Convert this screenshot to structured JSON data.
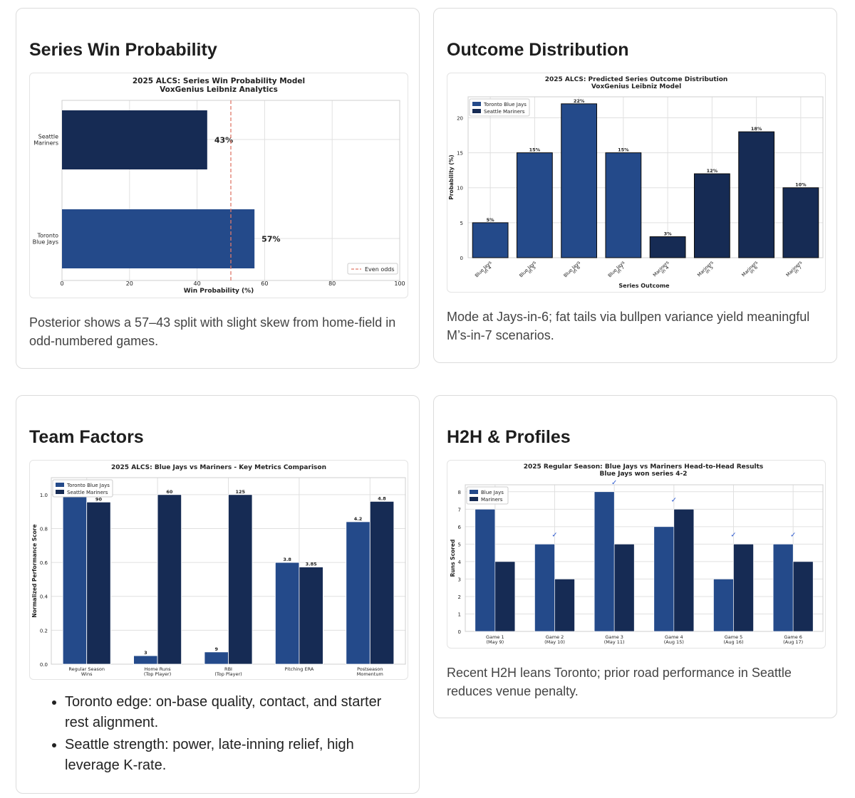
{
  "colors": {
    "blue_jays": "#244a8a",
    "mariners": "#162b54",
    "even_line": "#e07a6a",
    "grid": "#e0e0e0",
    "check": "#2f5bd0"
  },
  "cards": {
    "series": {
      "heading": "Series Win Probability",
      "caption": "Posterior shows a 57–43 split with slight skew from home-field in odd-numbered games."
    },
    "outcome": {
      "heading": "Outcome Distribution",
      "caption": "Mode at Jays-in-6; fat tails via bullpen variance yield meaningful M’s-in-7 scenarios."
    },
    "factors": {
      "heading": "Team Factors",
      "bullets": [
        "Toronto edge: on-base quality, contact, and starter rest alignment.",
        "Seattle strength: power, late-inning relief, high leverage K-rate."
      ]
    },
    "h2h": {
      "heading": "H2H & Profiles",
      "caption": "Recent H2H leans Toronto; prior road performance in Seattle reduces venue penalty."
    }
  },
  "chart_data": [
    {
      "id": "series_win",
      "type": "bar",
      "orientation": "horizontal",
      "title": "2025 ALCS: Series Win Probability Model",
      "subtitle": "VoxGenius Leibniz Analytics",
      "xlabel": "Win Probability (%)",
      "ylabel": "",
      "categories": [
        {
          "lines": [
            "Seattle",
            "Mariners"
          ],
          "value": 43,
          "label": "43%",
          "team": "mariners"
        },
        {
          "lines": [
            "Toronto",
            "Blue Jays"
          ],
          "value": 57,
          "label": "57%",
          "team": "blue_jays"
        }
      ],
      "xlim": [
        0,
        100
      ],
      "xticks": [
        "0",
        "20",
        "40",
        "60",
        "80",
        "100"
      ],
      "reference_line": {
        "value": 50,
        "label": "Even odds"
      },
      "legend_position": "bottom-right",
      "grid": true
    },
    {
      "id": "outcome_dist",
      "type": "bar",
      "title": "2025 ALCS: Predicted Series Outcome Distribution",
      "subtitle": "VoxGenius Leibniz Model",
      "xlabel": "Series Outcome",
      "ylabel": "Probability (%)",
      "ylim": [
        0,
        23
      ],
      "yticks": [
        "0",
        "5",
        "10",
        "15",
        "20"
      ],
      "bars": [
        {
          "lines": [
            "Blue Jays",
            "in 4"
          ],
          "value": 5,
          "label": "5%",
          "team": "blue_jays"
        },
        {
          "lines": [
            "Blue Jays",
            "in 5"
          ],
          "value": 15,
          "label": "15%",
          "team": "blue_jays"
        },
        {
          "lines": [
            "Blue Jays",
            "in 6"
          ],
          "value": 22,
          "label": "22%",
          "team": "blue_jays"
        },
        {
          "lines": [
            "Blue Jays",
            "in 7"
          ],
          "value": 15,
          "label": "15%",
          "team": "blue_jays"
        },
        {
          "lines": [
            "Mariners",
            "in 4"
          ],
          "value": 3,
          "label": "3%",
          "team": "mariners"
        },
        {
          "lines": [
            "Mariners",
            "in 5"
          ],
          "value": 12,
          "label": "12%",
          "team": "mariners"
        },
        {
          "lines": [
            "Mariners",
            "in 6"
          ],
          "value": 18,
          "label": "18%",
          "team": "mariners"
        },
        {
          "lines": [
            "Mariners",
            "in 7"
          ],
          "value": 10,
          "label": "10%",
          "team": "mariners"
        }
      ],
      "legend": [
        "Toronto Blue Jays",
        "Seattle Mariners"
      ],
      "legend_position": "top-left",
      "grid": true
    },
    {
      "id": "key_metrics",
      "type": "bar",
      "title": "2025 ALCS: Blue Jays vs Mariners - Key Metrics Comparison",
      "xlabel": "",
      "ylabel": "Normalized Performance Score",
      "ylim": [
        0,
        1.1
      ],
      "yticks": [
        "0.0",
        "0.2",
        "0.4",
        "0.6",
        "0.8",
        "1.0"
      ],
      "categories": [
        {
          "lines": [
            "Regular Season",
            "Wins"
          ]
        },
        {
          "lines": [
            "Home Runs",
            "(Top Player)"
          ]
        },
        {
          "lines": [
            "RBI",
            "(Top Player)"
          ]
        },
        {
          "lines": [
            "Pitching ERA"
          ]
        },
        {
          "lines": [
            "Postseason",
            "Momentum"
          ]
        }
      ],
      "series": [
        {
          "name": "Toronto Blue Jays",
          "team": "blue_jays",
          "values": [
            1.0,
            0.05,
            0.072,
            0.6,
            0.84
          ],
          "labels": [
            "",
            "3",
            "9",
            "3.8",
            "4.2"
          ]
        },
        {
          "name": "Seattle Mariners",
          "team": "mariners",
          "values": [
            0.956,
            1.0,
            1.0,
            0.573,
            0.96
          ],
          "labels": [
            "90",
            "60",
            "125",
            "3.85",
            "4.8"
          ]
        }
      ],
      "legend_position": "top-left",
      "grid": true
    },
    {
      "id": "h2h",
      "type": "bar",
      "title": "2025 Regular Season: Blue Jays vs Mariners Head-to-Head Results",
      "subtitle": "Blue Jays won series 4-2",
      "xlabel": "",
      "ylabel": "Runs Scored",
      "ylim": [
        0,
        8.4
      ],
      "yticks": [
        "0",
        "1",
        "2",
        "3",
        "4",
        "5",
        "6",
        "7",
        "8"
      ],
      "categories": [
        {
          "lines": [
            "Game 1",
            "(May 9)"
          ],
          "check": ""
        },
        {
          "lines": [
            "Game 2",
            "(May 10)"
          ],
          "check": "✓"
        },
        {
          "lines": [
            "Game 3",
            "(May 11)"
          ],
          "check": "✓"
        },
        {
          "lines": [
            "Game 4",
            "(Aug 15)"
          ],
          "check": "✓"
        },
        {
          "lines": [
            "Game 5",
            "(Aug 16)"
          ],
          "check": "✓"
        },
        {
          "lines": [
            "Game 6",
            "(Aug 17)"
          ],
          "check": "✓"
        }
      ],
      "series": [
        {
          "name": "Blue Jays",
          "team": "blue_jays",
          "values": [
            7,
            5,
            8,
            6,
            3,
            5
          ]
        },
        {
          "name": "Mariners",
          "team": "mariners",
          "values": [
            4,
            3,
            5,
            7,
            5,
            4
          ]
        }
      ],
      "legend_position": "top-left",
      "grid": true
    }
  ]
}
